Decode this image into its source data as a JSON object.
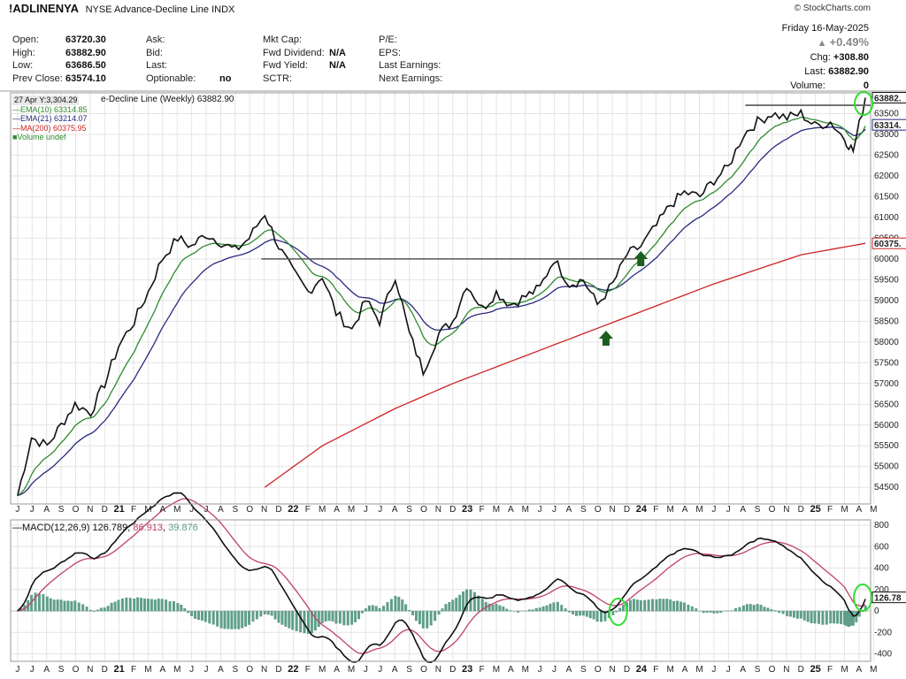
{
  "header": {
    "symbol": "!ADLINENYA",
    "name": "NYSE Advance-Decline Line INDX",
    "watermark": "© StockCharts.com",
    "date": "Friday 16-May-2025",
    "change_pct": "+0.49%",
    "chg_label": "Chg:",
    "chg_value": "+308.80",
    "last_label": "Last:",
    "last_value": "63882.90",
    "volume_label": "Volume:",
    "volume_value": "0"
  },
  "quote": {
    "col1": [
      {
        "label": "Open:",
        "value": "63720.30"
      },
      {
        "label": "High:",
        "value": "63882.90"
      },
      {
        "label": "Low:",
        "value": "63686.50"
      },
      {
        "label": "Prev Close:",
        "value": "63574.10"
      }
    ],
    "col2": [
      {
        "label": "Ask:",
        "value": ""
      },
      {
        "label": "Bid:",
        "value": ""
      },
      {
        "label": "Last:",
        "value": ""
      },
      {
        "label": "Optionable:",
        "value": "no"
      }
    ],
    "col3": [
      {
        "label": "Mkt Cap:",
        "value": ""
      },
      {
        "label": "Fwd Dividend:",
        "value": "N/A"
      },
      {
        "label": "Fwd Yield:",
        "value": "N/A"
      },
      {
        "label": "SCTR:",
        "value": ""
      }
    ],
    "col4": [
      {
        "label": "P/E:",
        "value": ""
      },
      {
        "label": "EPS:",
        "value": ""
      },
      {
        "label": "Last Earnings:",
        "value": ""
      },
      {
        "label": "Next Earnings:",
        "value": ""
      }
    ]
  },
  "legend": {
    "cursor": "27 Apr Y:3,304.29",
    "main": "e-Decline Line (Weekly) 63882.90",
    "ema10": "EMA(10) 63314.85",
    "ema21": "EMA(21) 63214.07",
    "ma200": "MA(200) 60375.95",
    "volume": "Volume undef",
    "macd_name": "MACD(12,26,9)",
    "macd_v1": "126.789",
    "macd_v2": "86.913",
    "macd_v3": "39.876"
  },
  "colors": {
    "price": "#111111",
    "ema10": "#2e8b2e",
    "ema21": "#2a2a80",
    "ma200": "#cc2222",
    "signal": "#c0406a",
    "hist": "#5f9e8a",
    "circle": "#33dd33",
    "arrow": "#1e5e1e"
  },
  "chart_data": [
    {
      "type": "line",
      "title": "!ADLINENYA NYSE Advance-Decline Line INDX",
      "x_months": [
        "J",
        "J",
        "A",
        "S",
        "O",
        "N",
        "D",
        "21",
        "F",
        "M",
        "A",
        "M",
        "J",
        "J",
        "A",
        "S",
        "O",
        "N",
        "D",
        "22",
        "F",
        "M",
        "A",
        "M",
        "J",
        "J",
        "A",
        "S",
        "O",
        "N",
        "D",
        "23",
        "F",
        "M",
        "A",
        "M",
        "J",
        "J",
        "A",
        "S",
        "O",
        "N",
        "D",
        "24",
        "F",
        "M",
        "A",
        "M",
        "J",
        "J",
        "A",
        "S",
        "O",
        "N",
        "D",
        "25",
        "F",
        "M",
        "A",
        "M"
      ],
      "y_ticks": [
        54500,
        55000,
        55500,
        56000,
        56500,
        57000,
        57500,
        58000,
        58500,
        59000,
        59500,
        60000,
        60500,
        61000,
        61500,
        62000,
        62500,
        63000,
        63500
      ],
      "ylim": [
        54100,
        64000
      ],
      "resistance_lines": [
        {
          "y": 60000,
          "from": "Dec 2021",
          "to": "Jan 2024"
        },
        {
          "y": 63700,
          "from": "Sep 2024",
          "to": "May 2025"
        }
      ],
      "series": [
        {
          "name": "e-Decline Line (Weekly)",
          "points": [
            [
              2020.5,
              54300
            ],
            [
              2020.58,
              55700
            ],
            [
              2020.67,
              55500
            ],
            [
              2020.75,
              56000
            ],
            [
              2020.83,
              56500
            ],
            [
              2020.92,
              56300
            ],
            [
              2021.0,
              57000
            ],
            [
              2021.08,
              57900
            ],
            [
              2021.17,
              58500
            ],
            [
              2021.25,
              59200
            ],
            [
              2021.33,
              60000
            ],
            [
              2021.42,
              60500
            ],
            [
              2021.5,
              60300
            ],
            [
              2021.58,
              60600
            ],
            [
              2021.67,
              60400
            ],
            [
              2021.75,
              60200
            ],
            [
              2021.83,
              60500
            ],
            [
              2021.92,
              61100
            ],
            [
              2022.0,
              60300
            ],
            [
              2022.08,
              59700
            ],
            [
              2022.17,
              59200
            ],
            [
              2022.25,
              59600
            ],
            [
              2022.33,
              58700
            ],
            [
              2022.42,
              58300
            ],
            [
              2022.5,
              59000
            ],
            [
              2022.58,
              58500
            ],
            [
              2022.67,
              59600
            ],
            [
              2022.75,
              58200
            ],
            [
              2022.83,
              57300
            ],
            [
              2022.92,
              58200
            ],
            [
              2023.0,
              58500
            ],
            [
              2023.08,
              59400
            ],
            [
              2023.17,
              58800
            ],
            [
              2023.25,
              59200
            ],
            [
              2023.33,
              58900
            ],
            [
              2023.42,
              59100
            ],
            [
              2023.5,
              59300
            ],
            [
              2023.58,
              60000
            ],
            [
              2023.67,
              59400
            ],
            [
              2023.75,
              59500
            ],
            [
              2023.83,
              58900
            ],
            [
              2023.92,
              59400
            ],
            [
              2024.0,
              60100
            ],
            [
              2024.08,
              60300
            ],
            [
              2024.17,
              60800
            ],
            [
              2024.25,
              61300
            ],
            [
              2024.33,
              61600
            ],
            [
              2024.42,
              61500
            ],
            [
              2024.5,
              61900
            ],
            [
              2024.58,
              62200
            ],
            [
              2024.67,
              63000
            ],
            [
              2024.75,
              63300
            ],
            [
              2024.83,
              63500
            ],
            [
              2024.92,
              63400
            ],
            [
              2025.0,
              63500
            ],
            [
              2025.08,
              63200
            ],
            [
              2025.17,
              63300
            ],
            [
              2025.25,
              62900
            ],
            [
              2025.3,
              62600
            ],
            [
              2025.37,
              63882.9
            ]
          ]
        },
        {
          "name": "EMA(10)",
          "value": 63314.85
        },
        {
          "name": "EMA(21)",
          "value": 63214.07
        },
        {
          "name": "MA(200)",
          "points": [
            [
              2021.92,
              54500
            ],
            [
              2022.25,
              55500
            ],
            [
              2022.67,
              56400
            ],
            [
              2023.0,
              57000
            ],
            [
              2023.5,
              57800
            ],
            [
              2024.0,
              58600
            ],
            [
              2024.5,
              59400
            ],
            [
              2025.0,
              60100
            ],
            [
              2025.37,
              60375.95
            ]
          ]
        }
      ]
    },
    {
      "type": "line",
      "title": "MACD(12,26,9)",
      "y_ticks": [
        -400,
        -200,
        0,
        200,
        400,
        600,
        800
      ],
      "ylim": [
        -470,
        850
      ],
      "series": [
        {
          "name": "MACD",
          "value": 126.789
        },
        {
          "name": "Signal",
          "value": 86.913
        },
        {
          "name": "Histogram",
          "value": 39.876
        }
      ]
    }
  ]
}
